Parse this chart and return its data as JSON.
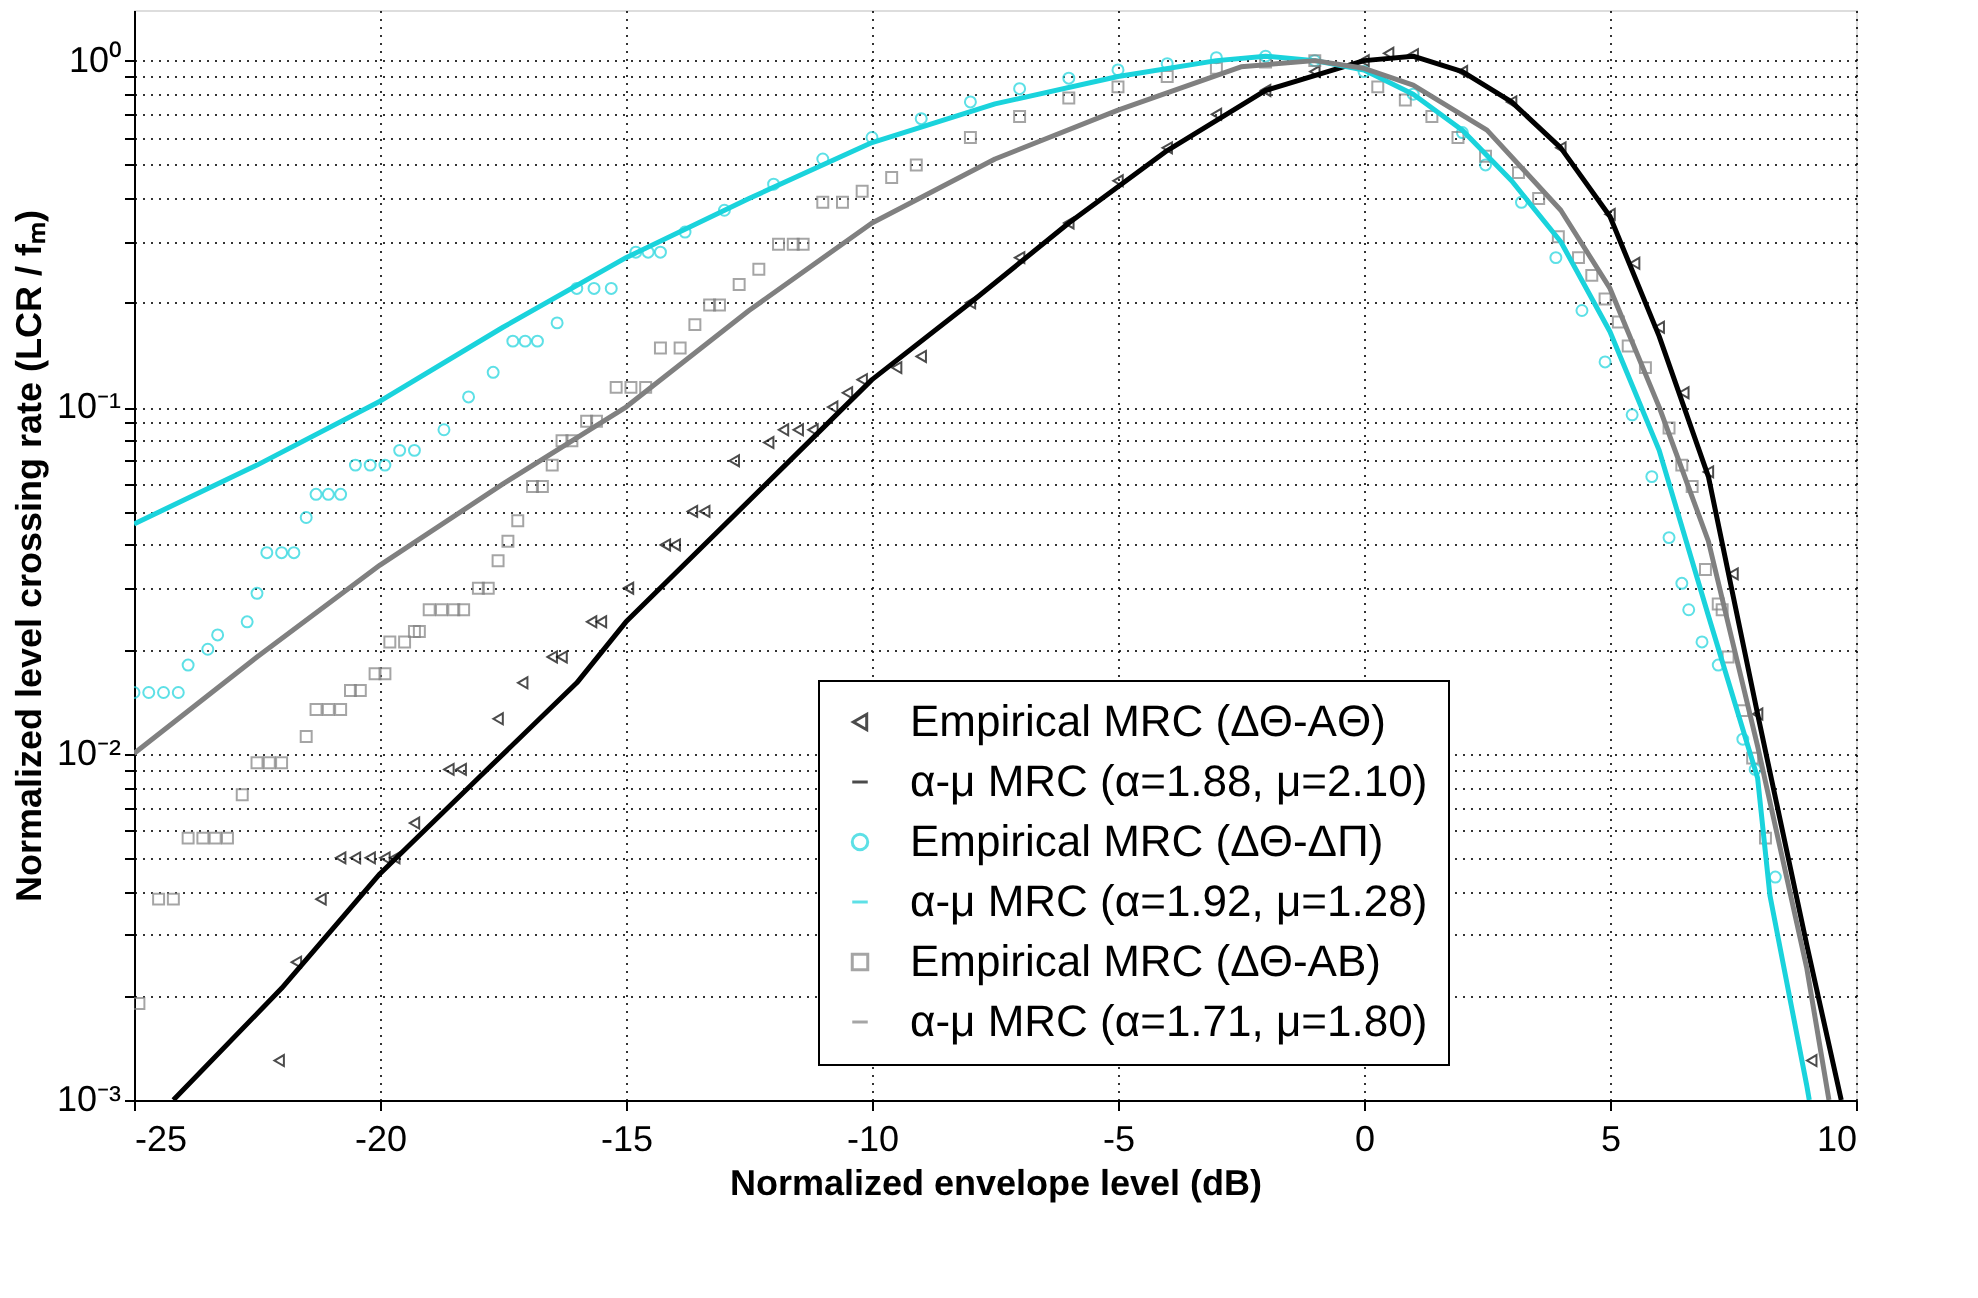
{
  "chart_data": {
    "type": "line",
    "xlabel": "Normalized envelope level (dB)",
    "ylabel": "Normalized level crossing rate (LCR / fₘ)",
    "log": "y",
    "grid": true,
    "legend": "bottom right",
    "xlim": [
      -25,
      10
    ],
    "xticks": [
      -25,
      -20,
      -15,
      -10,
      -5,
      0,
      5,
      10
    ],
    "ylim": [
      0.001,
      1.4
    ],
    "yticks": [
      {
        "value": 0.001,
        "label": "10⁻³"
      },
      {
        "value": 0.002,
        "label": null
      },
      {
        "value": 0.003,
        "label": null
      },
      {
        "value": 0.004,
        "label": null
      },
      {
        "value": 0.005,
        "label": null
      },
      {
        "value": 0.006,
        "label": null
      },
      {
        "value": 0.007,
        "label": null
      },
      {
        "value": 0.008,
        "label": null
      },
      {
        "value": 0.009,
        "label": null
      },
      {
        "value": 0.01,
        "label": "10⁻²"
      },
      {
        "value": 0.02,
        "label": null
      },
      {
        "value": 0.03,
        "label": null
      },
      {
        "value": 0.04,
        "label": null
      },
      {
        "value": 0.05,
        "label": null
      },
      {
        "value": 0.06,
        "label": null
      },
      {
        "value": 0.07,
        "label": null
      },
      {
        "value": 0.08,
        "label": null
      },
      {
        "value": 0.09,
        "label": null
      },
      {
        "value": 0.1,
        "label": "10⁻¹"
      },
      {
        "value": 0.2,
        "label": null
      },
      {
        "value": 0.3,
        "label": null
      },
      {
        "value": 0.4,
        "label": null
      },
      {
        "value": 0.5,
        "label": null
      },
      {
        "value": 0.6,
        "label": null
      },
      {
        "value": 0.7,
        "label": null
      },
      {
        "value": 0.8,
        "label": null
      },
      {
        "value": 0.9,
        "label": null
      },
      {
        "value": 1,
        "label": "10⁰"
      }
    ],
    "series": [
      {
        "name": "Empirical MRC (ΔΘ-AΘ)",
        "type": "scatter",
        "marker": "triangle",
        "color": "#000000",
        "x": [
          -22.05,
          -21.7,
          -21.2,
          -20.8,
          -20.5,
          -20.2,
          -19.9,
          -19.7,
          -19.3,
          -18.6,
          -18.35,
          -17.6,
          -17.1,
          -16.5,
          -16.3,
          -15.7,
          -15.5,
          -14.95,
          -14.2,
          -14.0,
          -13.65,
          -13.4,
          -12.8,
          -12.1,
          -11.8,
          -11.5,
          -11.2,
          -10.8,
          -10.5,
          -10.2,
          -9.5,
          -9,
          -8,
          -7,
          -6,
          -5,
          -4,
          -3,
          -2,
          -1,
          0,
          0.5,
          1,
          2,
          3,
          4,
          5,
          5.5,
          6,
          6.5,
          7,
          7.5,
          8,
          9.1
        ],
        "values": [
          0.0013,
          0.0025,
          0.0038,
          0.005,
          0.005,
          0.005,
          0.005,
          0.005,
          0.0063,
          0.009,
          0.009,
          0.0126,
          0.016,
          0.019,
          0.019,
          0.024,
          0.024,
          0.03,
          0.04,
          0.04,
          0.05,
          0.05,
          0.07,
          0.079,
          0.086,
          0.086,
          0.086,
          0.1,
          0.11,
          0.12,
          0.13,
          0.14,
          0.2,
          0.27,
          0.34,
          0.45,
          0.56,
          0.7,
          0.82,
          0.93,
          1.0,
          1.05,
          1.04,
          0.93,
          0.76,
          0.56,
          0.36,
          0.26,
          0.17,
          0.11,
          0.065,
          0.033,
          0.013,
          0.0013
        ]
      },
      {
        "name": "α-μ MRC (α=1.88, μ=2.10)",
        "type": "line",
        "color": "#000000",
        "x": [
          -24.2,
          -22,
          -20,
          -18,
          -16,
          -15,
          -12,
          -10,
          -8,
          -6,
          -4,
          -2,
          0,
          1,
          2,
          3,
          4,
          5,
          6,
          7,
          8,
          9,
          9.7
        ],
        "values": [
          0.001,
          0.0021,
          0.0045,
          0.0085,
          0.016,
          0.024,
          0.063,
          0.12,
          0.2,
          0.34,
          0.55,
          0.82,
          1.0,
          1.03,
          0.93,
          0.76,
          0.56,
          0.355,
          0.16,
          0.063,
          0.013,
          0.0028,
          0.001
        ]
      },
      {
        "name": "Empirical MRC (ΔΘ-ΔΠ)",
        "type": "scatter",
        "marker": "circle",
        "color": "#1ad3dc",
        "x": [
          -25,
          -24.7,
          -24.4,
          -24.1,
          -23.9,
          -23.5,
          -23.3,
          -22.7,
          -22.5,
          -22.3,
          -22.0,
          -21.75,
          -21.5,
          -21.3,
          -21.05,
          -20.8,
          -20.5,
          -20.2,
          -19.9,
          -19.6,
          -19.3,
          -18.7,
          -18.2,
          -17.7,
          -17.3,
          -17.05,
          -16.8,
          -16.4,
          -16,
          -15.65,
          -15.3,
          -14.8,
          -14.55,
          -14.3,
          -13.8,
          -13,
          -12,
          -11,
          -10,
          -9,
          -8,
          -7,
          -6,
          -5,
          -4,
          -3,
          -2,
          -1,
          0,
          1,
          2,
          2.47,
          3.2,
          3.9,
          4.43,
          4.9,
          5.45,
          5.85,
          6.2,
          6.46,
          6.6,
          6.87,
          7.2,
          7.7,
          7.95,
          8.36
        ],
        "values": [
          0.015,
          0.015,
          0.015,
          0.015,
          0.018,
          0.02,
          0.022,
          0.024,
          0.029,
          0.038,
          0.038,
          0.038,
          0.048,
          0.056,
          0.056,
          0.056,
          0.068,
          0.068,
          0.068,
          0.075,
          0.075,
          0.086,
          0.107,
          0.126,
          0.155,
          0.155,
          0.155,
          0.175,
          0.22,
          0.22,
          0.22,
          0.28,
          0.28,
          0.28,
          0.32,
          0.37,
          0.44,
          0.52,
          0.6,
          0.68,
          0.76,
          0.83,
          0.89,
          0.94,
          0.98,
          1.02,
          1.03,
          1.0,
          0.93,
          0.8,
          0.62,
          0.5,
          0.39,
          0.27,
          0.19,
          0.135,
          0.095,
          0.063,
          0.042,
          0.031,
          0.026,
          0.021,
          0.018,
          0.011,
          0.009,
          0.0044
        ]
      },
      {
        "name": "α-μ MRC (α=1.92, μ=1.28)",
        "type": "line",
        "color": "#1ad3dc",
        "x": [
          -25,
          -22.5,
          -20,
          -17.5,
          -15,
          -12.5,
          -10,
          -7.5,
          -5,
          -3,
          -2,
          -1,
          0,
          1,
          2,
          3,
          4,
          5,
          6,
          7,
          8,
          8.25,
          9,
          9.05
        ],
        "values": [
          0.046,
          0.068,
          0.104,
          0.17,
          0.27,
          0.4,
          0.58,
          0.75,
          0.9,
          1.0,
          1.03,
          1.0,
          0.94,
          0.8,
          0.63,
          0.45,
          0.3,
          0.165,
          0.075,
          0.025,
          0.0085,
          0.0039,
          0.0011,
          0.001
        ]
      },
      {
        "name": "Empirical MRC (ΔΘ-AB)",
        "type": "scatter",
        "marker": "square",
        "color": "#808080",
        "x": [
          -24.9,
          -24.5,
          -24.2,
          -23.9,
          -23.6,
          -23.35,
          -23.1,
          -22.8,
          -22.5,
          -22.25,
          -22.0,
          -21.5,
          -21.3,
          -21.05,
          -20.8,
          -20.6,
          -20.4,
          -20.1,
          -19.9,
          -19.8,
          -19.5,
          -19.3,
          -19.2,
          -19.0,
          -18.75,
          -18.5,
          -18.3,
          -18.0,
          -17.8,
          -17.6,
          -17.4,
          -17.2,
          -16.9,
          -16.7,
          -16.5,
          -16.3,
          -16.1,
          -15.8,
          -15.6,
          -15.2,
          -14.9,
          -14.6,
          -14.3,
          -13.9,
          -13.6,
          -13.3,
          -13.1,
          -12.7,
          -12.3,
          -11.9,
          -11.6,
          -11.4,
          -11.0,
          -10.6,
          -10.2,
          -9.6,
          -9.1,
          -8,
          -7,
          -6,
          -5,
          -4,
          -3,
          -2,
          -1,
          0.28,
          0.84,
          1.38,
          1.91,
          2.47,
          3.14,
          3.55,
          3.95,
          4.36,
          4.63,
          4.9,
          5.17,
          5.37,
          5.72,
          6.2,
          6.46,
          6.67,
          6.94,
          7.2,
          7.28,
          7.4,
          7.7,
          7.9,
          8.16
        ],
        "values": [
          0.0019,
          0.0038,
          0.0038,
          0.0057,
          0.0057,
          0.0057,
          0.0057,
          0.0076,
          0.0094,
          0.0094,
          0.0094,
          0.0112,
          0.0134,
          0.0134,
          0.0134,
          0.0152,
          0.0152,
          0.017,
          0.017,
          0.021,
          0.021,
          0.0225,
          0.0225,
          0.026,
          0.026,
          0.026,
          0.026,
          0.03,
          0.03,
          0.036,
          0.041,
          0.047,
          0.059,
          0.059,
          0.068,
          0.08,
          0.08,
          0.091,
          0.091,
          0.114,
          0.114,
          0.114,
          0.148,
          0.148,
          0.173,
          0.197,
          0.197,
          0.226,
          0.25,
          0.295,
          0.295,
          0.295,
          0.39,
          0.39,
          0.42,
          0.46,
          0.5,
          0.6,
          0.69,
          0.78,
          0.84,
          0.9,
          0.95,
          0.99,
          1.0,
          0.84,
          0.77,
          0.69,
          0.6,
          0.53,
          0.475,
          0.4,
          0.31,
          0.27,
          0.24,
          0.205,
          0.176,
          0.15,
          0.13,
          0.087,
          0.068,
          0.059,
          0.034,
          0.027,
          0.026,
          0.019,
          0.0133,
          0.0097,
          0.0057
        ]
      },
      {
        "name": "α-μ MRC (α=1.71, μ=1.80)",
        "type": "line",
        "color": "#808080",
        "x": [
          -25,
          -22.5,
          -20,
          -17.5,
          -15,
          -12.5,
          -10,
          -7.5,
          -5,
          -2.5,
          -1,
          0,
          1,
          2.5,
          4,
          5,
          6,
          7,
          8,
          9,
          9.45
        ],
        "values": [
          0.01,
          0.019,
          0.035,
          0.06,
          0.1,
          0.19,
          0.34,
          0.52,
          0.72,
          0.96,
          1.0,
          0.95,
          0.85,
          0.63,
          0.37,
          0.22,
          0.1,
          0.041,
          0.0105,
          0.0024,
          0.001
        ]
      }
    ]
  }
}
